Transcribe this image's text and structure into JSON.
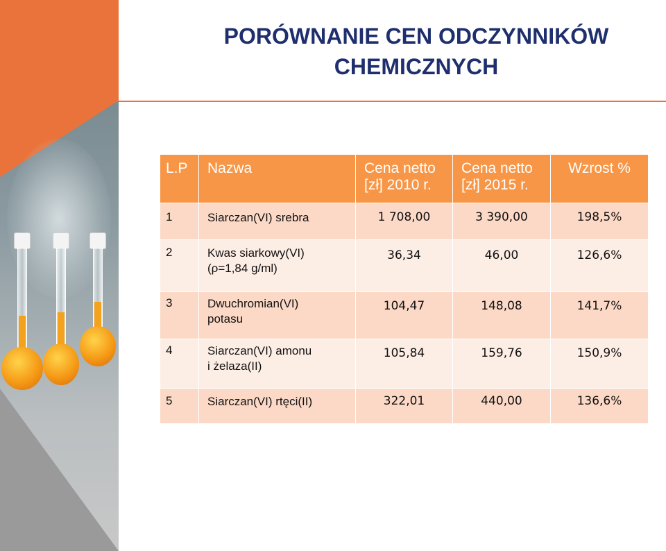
{
  "title": "PORÓWNANIE CEN ODCZYNNIKÓW CHEMICZNYCH",
  "table": {
    "headers": [
      "L.P",
      "Nazwa",
      "Cena netto [zł] 2010 r.",
      "Cena netto [zł] 2015 r.",
      "Wzrost %"
    ],
    "rows": [
      {
        "lp": "1",
        "name_lines": [
          "Siarczan(VI) srebra"
        ],
        "price_2010": "1 708,00",
        "price_2015": "3 390,00",
        "growth": "198,5%"
      },
      {
        "lp": "2",
        "name_lines": [
          "Kwas siarkowy(VI)",
          "(ρ=1,84 g/ml)"
        ],
        "price_2010": "36,34",
        "price_2015": "46,00",
        "growth": "126,6%"
      },
      {
        "lp": "3",
        "name_lines": [
          "Dwuchromian(VI)",
          "potasu"
        ],
        "price_2010": "104,47",
        "price_2015": "148,08",
        "growth": "141,7%"
      },
      {
        "lp": "4",
        "name_lines": [
          "Siarczan(VI) amonu",
          "i żelaza(II)"
        ],
        "price_2010": "105,84",
        "price_2015": "159,76",
        "growth": "150,9%"
      },
      {
        "lp": "5",
        "name_lines": [
          "Siarczan(VI) rtęci(II)"
        ],
        "price_2010": "322,01",
        "price_2015": "440,00",
        "growth": "136,6%"
      }
    ]
  },
  "colors": {
    "accent_orange": "#e9733b",
    "header_bg": "#f79646",
    "row_odd_bg": "#fcd9c6",
    "row_even_bg": "#fdeee5",
    "title_color": "#1f2f6e"
  }
}
